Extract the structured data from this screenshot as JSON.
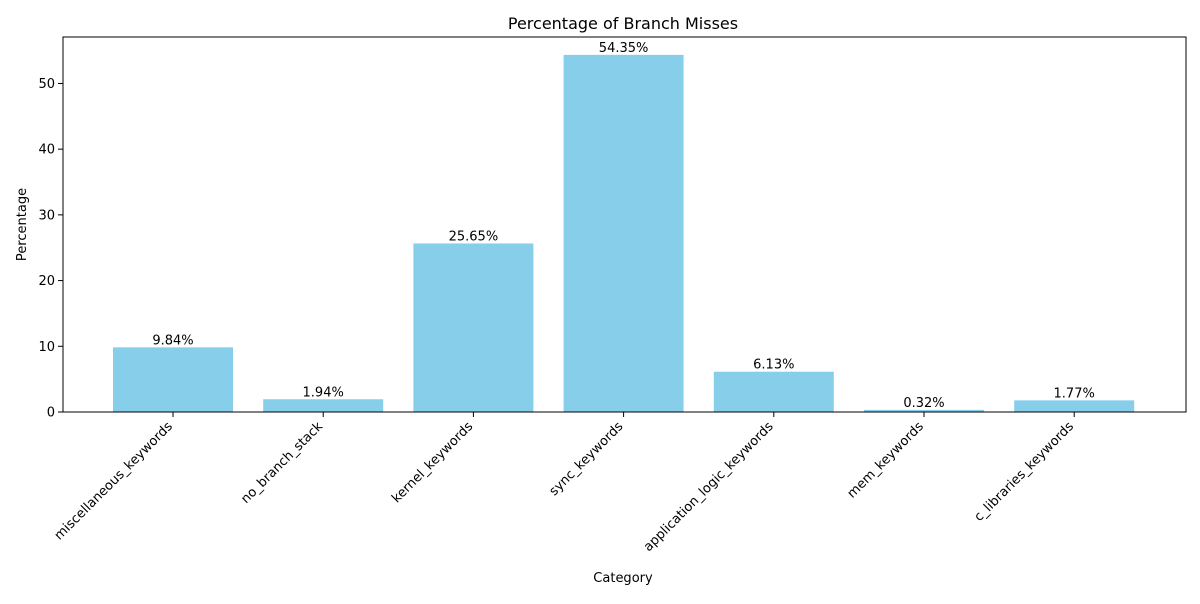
{
  "chart_data": {
    "type": "bar",
    "title": "Percentage of Branch Misses",
    "xlabel": "Category",
    "ylabel": "Percentage",
    "categories": [
      "miscellaneous_keywords",
      "no_branch_stack",
      "kernel_keywords",
      "sync_keywords",
      "application_logic_keywords",
      "mem_keywords",
      "c_libraries_keywords"
    ],
    "values": [
      9.84,
      1.94,
      25.65,
      54.35,
      6.13,
      0.32,
      1.77
    ],
    "data_labels": [
      "9.84%",
      "1.94%",
      "25.65%",
      "54.35%",
      "6.13%",
      "0.32%",
      "1.77%"
    ],
    "ylim": [
      0,
      57.07
    ],
    "yticks": [
      0,
      10,
      20,
      30,
      40,
      50
    ],
    "grid": false,
    "legend": "none",
    "bar_color": "#87ceeb",
    "x_tick_rotation_deg": 45
  }
}
